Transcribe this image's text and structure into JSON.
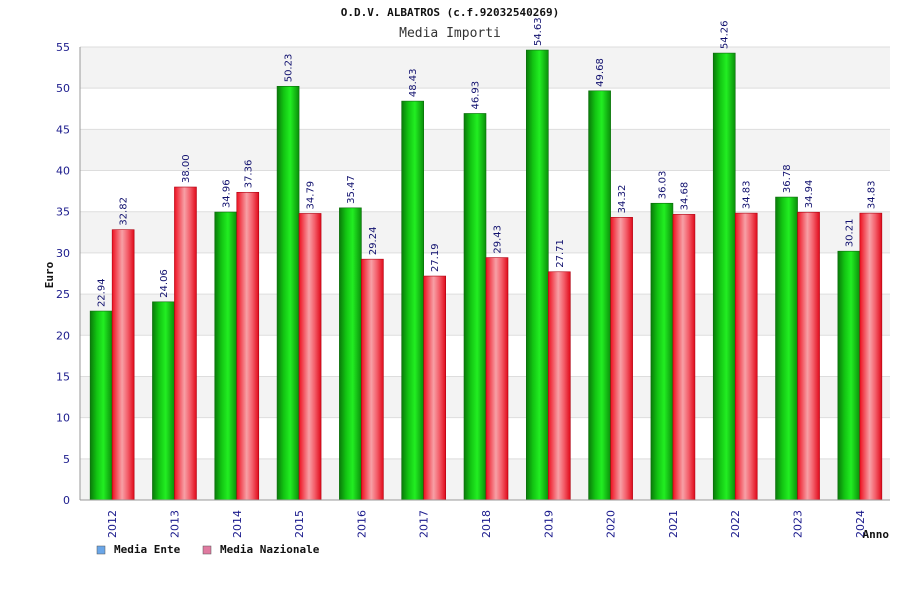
{
  "chart_data": {
    "type": "bar",
    "title": "O.D.V. ALBATROS (c.f.92032540269)",
    "subtitle": "Media Importi",
    "xlabel": "Anno",
    "ylabel": "Euro",
    "ylim": [
      0,
      55
    ],
    "yticks": [
      0,
      5,
      10,
      15,
      20,
      25,
      30,
      35,
      40,
      45,
      50,
      55
    ],
    "grid": true,
    "legend_position": "bottom-left",
    "categories": [
      "2012",
      "2013",
      "2014",
      "2015",
      "2016",
      "2017",
      "2018",
      "2019",
      "2020",
      "2021",
      "2022",
      "2023",
      "2024"
    ],
    "series": [
      {
        "name": "Media Ente",
        "bar_color": "#19c419",
        "legend_color": "#6aa6e8",
        "values": [
          22.94,
          24.06,
          34.96,
          50.23,
          35.47,
          48.43,
          46.93,
          54.63,
          49.68,
          36.03,
          54.26,
          36.78,
          30.21
        ],
        "labels": [
          "22.94",
          "24.06",
          "34.96",
          "50.23",
          "35.47",
          "48.43",
          "46.93",
          "54.63",
          "49.68",
          "36.03",
          "54.26",
          "36.78",
          "30.21"
        ]
      },
      {
        "name": "Media Nazionale",
        "bar_color": "#ee1c2e",
        "legend_color": "#e07aa0",
        "values": [
          32.82,
          38.0,
          37.36,
          34.79,
          29.24,
          27.19,
          29.43,
          27.71,
          34.32,
          34.68,
          34.83,
          34.94,
          34.83
        ],
        "labels": [
          "32.82",
          "38.00",
          "37.36",
          "34.79",
          "29.24",
          "27.19",
          "29.43",
          "27.71",
          "34.32",
          "34.68",
          "34.83",
          "34.94",
          "34.83"
        ]
      }
    ]
  }
}
